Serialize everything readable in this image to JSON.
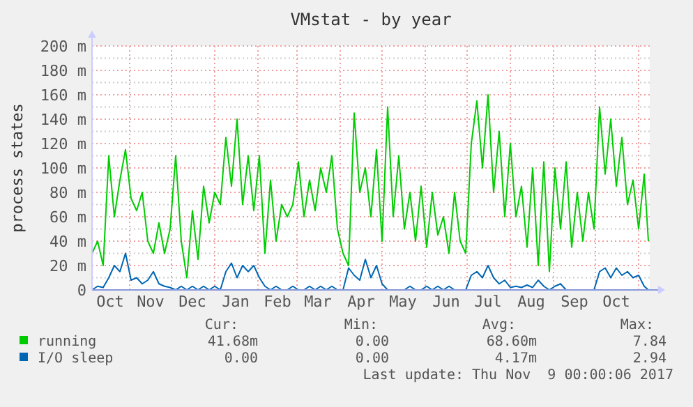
{
  "chart_data": {
    "type": "line",
    "title": "VMstat - by year",
    "ylabel": "process states",
    "x": [
      "2016-10-05",
      "2016-10-09",
      "2016-10-13",
      "2016-10-17",
      "2016-10-21",
      "2016-10-25",
      "2016-10-29",
      "2016-11-02",
      "2016-11-06",
      "2016-11-10",
      "2016-11-14",
      "2016-11-18",
      "2016-11-22",
      "2016-11-26",
      "2016-11-30",
      "2016-12-04",
      "2016-12-08",
      "2016-12-12",
      "2016-12-16",
      "2016-12-20",
      "2016-12-24",
      "2016-12-28",
      "2017-01-01",
      "2017-01-05",
      "2017-01-09",
      "2017-01-13",
      "2017-01-17",
      "2017-01-21",
      "2017-01-25",
      "2017-01-29",
      "2017-02-02",
      "2017-02-06",
      "2017-02-10",
      "2017-02-14",
      "2017-02-18",
      "2017-02-22",
      "2017-02-26",
      "2017-03-02",
      "2017-03-06",
      "2017-03-10",
      "2017-03-14",
      "2017-03-18",
      "2017-03-22",
      "2017-03-26",
      "2017-03-30",
      "2017-04-03",
      "2017-04-07",
      "2017-04-11",
      "2017-04-15",
      "2017-04-19",
      "2017-04-23",
      "2017-04-27",
      "2017-05-01",
      "2017-05-05",
      "2017-05-09",
      "2017-05-13",
      "2017-05-17",
      "2017-05-21",
      "2017-05-25",
      "2017-05-29",
      "2017-06-02",
      "2017-06-06",
      "2017-06-10",
      "2017-06-14",
      "2017-06-18",
      "2017-06-22",
      "2017-06-26",
      "2017-06-30",
      "2017-07-04",
      "2017-07-08",
      "2017-07-12",
      "2017-07-16",
      "2017-07-20",
      "2017-07-24",
      "2017-07-28",
      "2017-08-01",
      "2017-08-05",
      "2017-08-09",
      "2017-08-13",
      "2017-08-17",
      "2017-08-21",
      "2017-08-25",
      "2017-08-29",
      "2017-09-02",
      "2017-09-06",
      "2017-09-10",
      "2017-09-14",
      "2017-09-18",
      "2017-09-22",
      "2017-09-26",
      "2017-09-30",
      "2017-10-04",
      "2017-10-08",
      "2017-10-12",
      "2017-10-16",
      "2017-10-20",
      "2017-10-24",
      "2017-10-28",
      "2017-11-01",
      "2017-11-05",
      "2017-11-08"
    ],
    "series": [
      {
        "name": "running",
        "color": "#00cc00",
        "values": [
          30,
          40,
          20,
          110,
          60,
          90,
          115,
          75,
          65,
          80,
          40,
          30,
          55,
          30,
          50,
          110,
          40,
          10,
          65,
          25,
          85,
          55,
          80,
          70,
          125,
          85,
          140,
          70,
          110,
          65,
          110,
          30,
          90,
          40,
          70,
          60,
          70,
          105,
          60,
          90,
          65,
          100,
          80,
          110,
          50,
          30,
          20,
          145,
          80,
          100,
          60,
          115,
          40,
          150,
          60,
          110,
          50,
          80,
          40,
          85,
          35,
          80,
          45,
          60,
          30,
          80,
          40,
          30,
          120,
          155,
          100,
          160,
          80,
          130,
          60,
          120,
          60,
          85,
          35,
          100,
          20,
          105,
          15,
          100,
          50,
          105,
          35,
          80,
          40,
          80,
          50,
          150,
          95,
          140,
          85,
          125,
          70,
          90,
          50,
          95,
          40
        ]
      },
      {
        "name": "I/O sleep",
        "color": "#0066b3",
        "values": [
          0,
          3,
          2,
          10,
          20,
          15,
          30,
          8,
          10,
          5,
          8,
          15,
          5,
          3,
          2,
          0,
          3,
          0,
          3,
          0,
          3,
          0,
          3,
          0,
          15,
          22,
          10,
          20,
          15,
          20,
          10,
          3,
          0,
          3,
          0,
          0,
          3,
          0,
          0,
          3,
          0,
          3,
          0,
          3,
          0,
          0,
          18,
          12,
          8,
          25,
          10,
          20,
          5,
          0,
          0,
          0,
          0,
          3,
          0,
          0,
          3,
          0,
          3,
          0,
          3,
          0,
          0,
          0,
          12,
          15,
          10,
          20,
          10,
          5,
          8,
          2,
          3,
          2,
          4,
          2,
          8,
          3,
          0,
          3,
          5,
          0,
          0,
          0,
          0,
          0,
          0,
          15,
          18,
          10,
          18,
          12,
          15,
          10,
          12,
          3,
          0
        ]
      }
    ],
    "xlim": [
      "2016-10-05",
      "2017-11-09"
    ],
    "xticks": [
      {
        "value": "2016-10-18",
        "label": "Oct"
      },
      {
        "value": "2016-11-16",
        "label": "Nov"
      },
      {
        "value": "2016-12-16",
        "label": "Dec"
      },
      {
        "value": "2017-01-16",
        "label": "Jan"
      },
      {
        "value": "2017-02-15",
        "label": "Feb"
      },
      {
        "value": "2017-03-16",
        "label": "Mar"
      },
      {
        "value": "2017-04-16",
        "label": "Apr"
      },
      {
        "value": "2017-05-16",
        "label": "May"
      },
      {
        "value": "2017-06-16",
        "label": "Jun"
      },
      {
        "value": "2017-07-16",
        "label": "Jul"
      },
      {
        "value": "2017-08-16",
        "label": "Aug"
      },
      {
        "value": "2017-09-16",
        "label": "Sep"
      },
      {
        "value": "2017-10-16",
        "label": "Oct"
      },
      {
        "value": "2016-11-01",
        "label": null
      },
      {
        "value": "2016-12-01",
        "label": null
      },
      {
        "value": "2017-01-01",
        "label": null
      },
      {
        "value": "2017-02-01",
        "label": null
      },
      {
        "value": "2017-03-01",
        "label": null
      },
      {
        "value": "2017-04-01",
        "label": null
      },
      {
        "value": "2017-05-01",
        "label": null
      },
      {
        "value": "2017-06-01",
        "label": null
      },
      {
        "value": "2017-07-01",
        "label": null
      },
      {
        "value": "2017-08-01",
        "label": null
      },
      {
        "value": "2017-09-01",
        "label": null
      },
      {
        "value": "2017-10-01",
        "label": null
      },
      {
        "value": "2017-11-01",
        "label": null
      }
    ],
    "ylim": [
      0,
      200
    ],
    "yticks": [
      {
        "value": 0,
        "label": "0"
      },
      {
        "value": 10,
        "label": null
      },
      {
        "value": 20,
        "label": "20 m"
      },
      {
        "value": 30,
        "label": null
      },
      {
        "value": 40,
        "label": "40 m"
      },
      {
        "value": 50,
        "label": null
      },
      {
        "value": 60,
        "label": "60 m"
      },
      {
        "value": 70,
        "label": null
      },
      {
        "value": 80,
        "label": "80 m"
      },
      {
        "value": 90,
        "label": null
      },
      {
        "value": 100,
        "label": "100 m"
      },
      {
        "value": 110,
        "label": null
      },
      {
        "value": 120,
        "label": "120 m"
      },
      {
        "value": 130,
        "label": null
      },
      {
        "value": 140,
        "label": "140 m"
      },
      {
        "value": 150,
        "label": null
      },
      {
        "value": 160,
        "label": "160 m"
      },
      {
        "value": 170,
        "label": null
      },
      {
        "value": 180,
        "label": "180 m"
      },
      {
        "value": 190,
        "label": null
      },
      {
        "value": 200,
        "label": "200 m"
      }
    ],
    "grid": true,
    "legend": "bottom",
    "marker": "none",
    "line_style": "solid",
    "annotations": [
      "Cur:",
      "Min:",
      "Avg:",
      "Max:",
      "41.68m",
      "0.00",
      "68.60m",
      "7.84",
      "0.00",
      "0.00",
      "4.17m",
      "2.94",
      "Last update: Thu Nov  9 00:00:06 2017"
    ]
  }
}
